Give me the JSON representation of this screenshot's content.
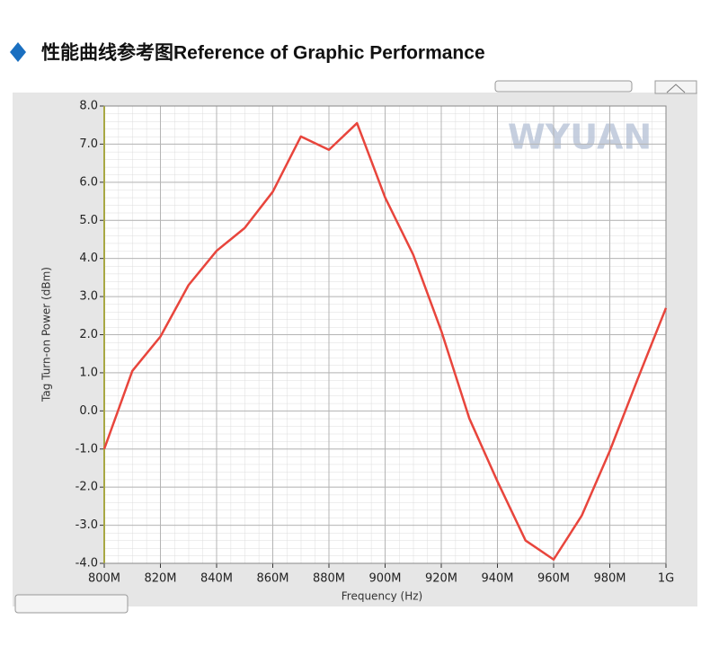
{
  "header": {
    "title": "性能曲线参考图Reference of Graphic Performance"
  },
  "chart_data": {
    "type": "line",
    "watermark": "WYUAN",
    "x_label": "Frequency (Hz)",
    "y_label": "Tag Turn-on Power (dBm)",
    "x": [
      800,
      810,
      820,
      830,
      840,
      850,
      860,
      870,
      880,
      890,
      900,
      910,
      920,
      930,
      940,
      950,
      960,
      970,
      980,
      990,
      1000
    ],
    "series": [
      {
        "name": "Tag Turn-on Power",
        "color": "#e8453c",
        "values": [
          -1.0,
          1.05,
          1.95,
          3.3,
          4.2,
          4.8,
          5.75,
          7.2,
          6.85,
          7.55,
          5.6,
          4.1,
          2.1,
          -0.2,
          -1.85,
          -3.4,
          -3.9,
          -2.75,
          -1.05,
          0.85,
          2.7
        ]
      }
    ],
    "xlim": [
      800,
      1000
    ],
    "xticks": [
      {
        "value": 800,
        "label": "800M"
      },
      {
        "value": 820,
        "label": "820M"
      },
      {
        "value": 840,
        "label": "840M"
      },
      {
        "value": 860,
        "label": "860M"
      },
      {
        "value": 880,
        "label": "880M"
      },
      {
        "value": 900,
        "label": "900M"
      },
      {
        "value": 920,
        "label": "920M"
      },
      {
        "value": 940,
        "label": "940M"
      },
      {
        "value": 960,
        "label": "960M"
      },
      {
        "value": 980,
        "label": "980M"
      },
      {
        "value": 1000,
        "label": "1G"
      }
    ],
    "ylim": [
      -4,
      8
    ],
    "yticks": [
      {
        "value": -4,
        "label": "-4.0"
      },
      {
        "value": -3,
        "label": "-3.0"
      },
      {
        "value": -2,
        "label": "-2.0"
      },
      {
        "value": -1,
        "label": "-1.0"
      },
      {
        "value": 0,
        "label": "0.0"
      },
      {
        "value": 1,
        "label": "1.0"
      },
      {
        "value": 2,
        "label": "2.0"
      },
      {
        "value": 3,
        "label": "3.0"
      },
      {
        "value": 4,
        "label": "4.0"
      },
      {
        "value": 5,
        "label": "5.0"
      },
      {
        "value": 6,
        "label": "6.0"
      },
      {
        "value": 7,
        "label": "7.0"
      },
      {
        "value": 8,
        "label": "8.0"
      }
    ],
    "grid": true
  }
}
